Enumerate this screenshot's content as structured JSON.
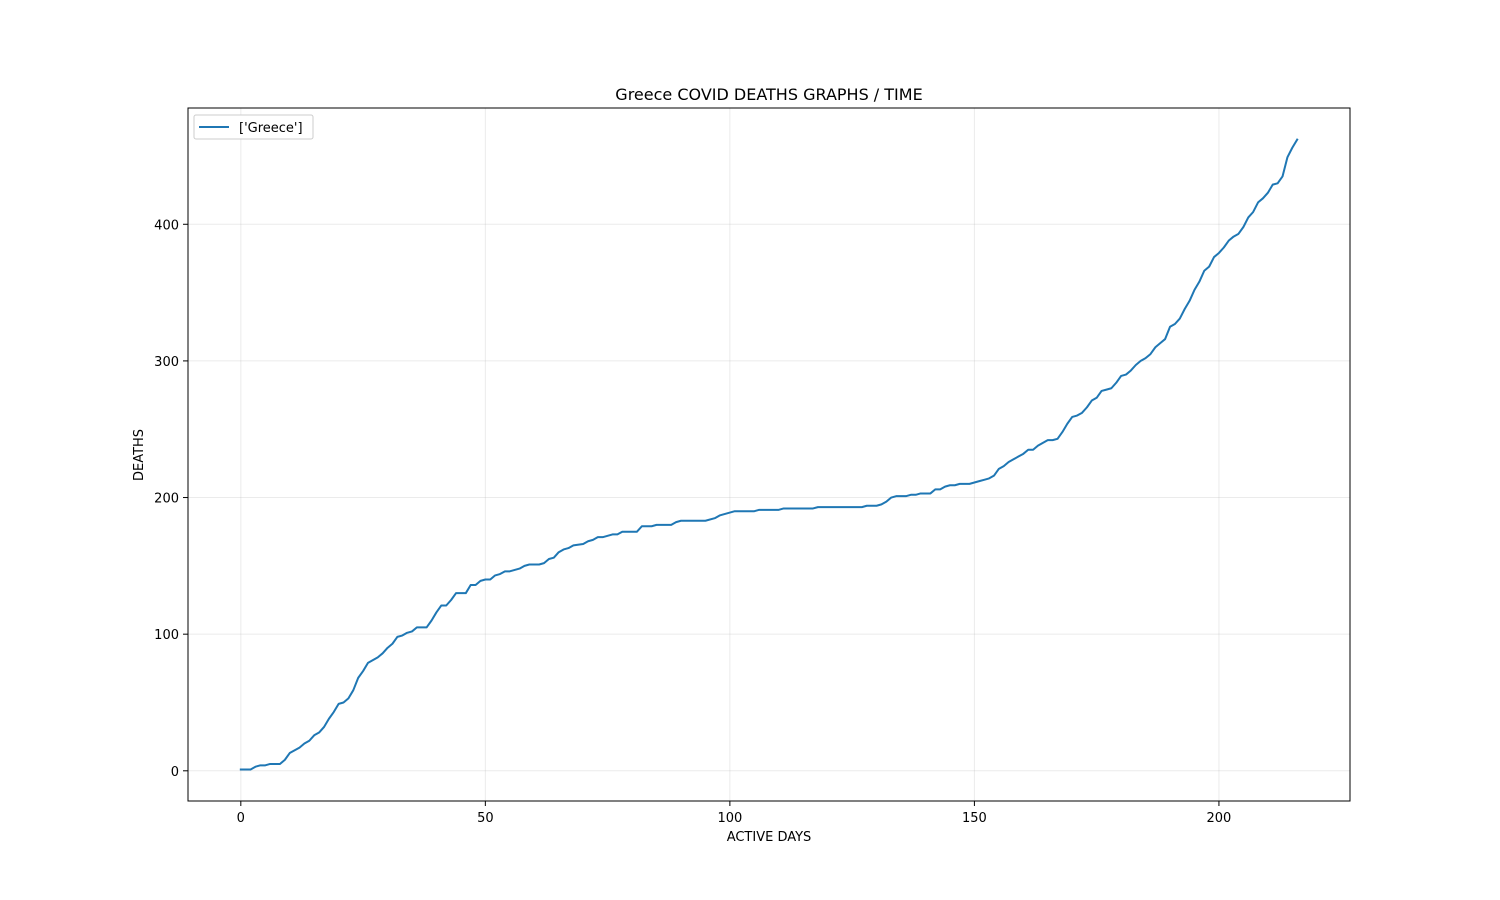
{
  "chart_data": {
    "type": "line",
    "title": "Greece COVID DEATHS GRAPHS / TIME",
    "xlabel": "ACTIVE DAYS",
    "ylabel": "DEATHS",
    "xlim": [
      -10.8,
      226.8
    ],
    "ylim": [
      -22.1,
      485.1
    ],
    "xticks": [
      0,
      50,
      100,
      150,
      200
    ],
    "yticks": [
      0,
      100,
      200,
      300,
      400
    ],
    "grid": true,
    "legend_position": "top-left",
    "line_color": "#1f77b4",
    "series": [
      {
        "name": "['Greece']",
        "points": [
          [
            0,
            1
          ],
          [
            2,
            1
          ],
          [
            3,
            3
          ],
          [
            4,
            4
          ],
          [
            5,
            4
          ],
          [
            6,
            5
          ],
          [
            8,
            5
          ],
          [
            9,
            8
          ],
          [
            10,
            13
          ],
          [
            12,
            17
          ],
          [
            13,
            20
          ],
          [
            14,
            22
          ],
          [
            15,
            26
          ],
          [
            16,
            28
          ],
          [
            17,
            32
          ],
          [
            18,
            38
          ],
          [
            19,
            43
          ],
          [
            20,
            49
          ],
          [
            21,
            50
          ],
          [
            22,
            53
          ],
          [
            23,
            59
          ],
          [
            24,
            68
          ],
          [
            25,
            73
          ],
          [
            26,
            79
          ],
          [
            27,
            81
          ],
          [
            28,
            83
          ],
          [
            29,
            86
          ],
          [
            30,
            90
          ],
          [
            31,
            93
          ],
          [
            32,
            98
          ],
          [
            33,
            99
          ],
          [
            34,
            101
          ],
          [
            35,
            102
          ],
          [
            36,
            105
          ],
          [
            38,
            105
          ],
          [
            39,
            110
          ],
          [
            40,
            116
          ],
          [
            41,
            121
          ],
          [
            42,
            121
          ],
          [
            43,
            125
          ],
          [
            44,
            130
          ],
          [
            46,
            130
          ],
          [
            47,
            136
          ],
          [
            48,
            136
          ],
          [
            49,
            139
          ],
          [
            50,
            140
          ],
          [
            51,
            140
          ],
          [
            52,
            143
          ],
          [
            53,
            144
          ],
          [
            54,
            146
          ],
          [
            55,
            146
          ],
          [
            56,
            147
          ],
          [
            57,
            148
          ],
          [
            58,
            150
          ],
          [
            59,
            151
          ],
          [
            61,
            151
          ],
          [
            62,
            152
          ],
          [
            63,
            155
          ],
          [
            64,
            156
          ],
          [
            65,
            160
          ],
          [
            66,
            162
          ],
          [
            67,
            163
          ],
          [
            68,
            165
          ],
          [
            70,
            166
          ],
          [
            71,
            168
          ],
          [
            72,
            169
          ],
          [
            73,
            171
          ],
          [
            74,
            171
          ],
          [
            75,
            172
          ],
          [
            76,
            173
          ],
          [
            77,
            173
          ],
          [
            78,
            175
          ],
          [
            81,
            175
          ],
          [
            82,
            179
          ],
          [
            84,
            179
          ],
          [
            85,
            180
          ],
          [
            88,
            180
          ],
          [
            89,
            182
          ],
          [
            90,
            183
          ],
          [
            95,
            183
          ],
          [
            97,
            185
          ],
          [
            98,
            187
          ],
          [
            100,
            189
          ],
          [
            101,
            190
          ],
          [
            105,
            190
          ],
          [
            106,
            191
          ],
          [
            110,
            191
          ],
          [
            111,
            192
          ],
          [
            117,
            192
          ],
          [
            118,
            193
          ],
          [
            127,
            193
          ],
          [
            128,
            194
          ],
          [
            130,
            194
          ],
          [
            131,
            195
          ],
          [
            132,
            197
          ],
          [
            133,
            200
          ],
          [
            134,
            201
          ],
          [
            136,
            201
          ],
          [
            137,
            202
          ],
          [
            138,
            202
          ],
          [
            139,
            203
          ],
          [
            141,
            203
          ],
          [
            142,
            206
          ],
          [
            143,
            206
          ],
          [
            144,
            208
          ],
          [
            145,
            209
          ],
          [
            146,
            209
          ],
          [
            147,
            210
          ],
          [
            149,
            210
          ],
          [
            150,
            211
          ],
          [
            151,
            212
          ],
          [
            152,
            213
          ],
          [
            153,
            214
          ],
          [
            154,
            216
          ],
          [
            155,
            221
          ],
          [
            156,
            223
          ],
          [
            157,
            226
          ],
          [
            158,
            228
          ],
          [
            159,
            230
          ],
          [
            160,
            232
          ],
          [
            161,
            235
          ],
          [
            162,
            235
          ],
          [
            163,
            238
          ],
          [
            164,
            240
          ],
          [
            165,
            242
          ],
          [
            166,
            242
          ],
          [
            167,
            243
          ],
          [
            168,
            248
          ],
          [
            169,
            254
          ],
          [
            170,
            259
          ],
          [
            171,
            260
          ],
          [
            172,
            262
          ],
          [
            173,
            266
          ],
          [
            174,
            271
          ],
          [
            175,
            273
          ],
          [
            176,
            278
          ],
          [
            177,
            279
          ],
          [
            178,
            280
          ],
          [
            179,
            284
          ],
          [
            180,
            289
          ],
          [
            181,
            290
          ],
          [
            182,
            293
          ],
          [
            183,
            297
          ],
          [
            184,
            300
          ],
          [
            185,
            302
          ],
          [
            186,
            305
          ],
          [
            187,
            310
          ],
          [
            188,
            313
          ],
          [
            189,
            316
          ],
          [
            190,
            325
          ],
          [
            191,
            327
          ],
          [
            192,
            331
          ],
          [
            193,
            338
          ],
          [
            194,
            344
          ],
          [
            195,
            352
          ],
          [
            196,
            358
          ],
          [
            197,
            366
          ],
          [
            198,
            369
          ],
          [
            199,
            376
          ],
          [
            200,
            379
          ],
          [
            201,
            383
          ],
          [
            202,
            388
          ],
          [
            203,
            391
          ],
          [
            204,
            393
          ],
          [
            205,
            398
          ],
          [
            206,
            405
          ],
          [
            207,
            409
          ],
          [
            208,
            416
          ],
          [
            209,
            419
          ],
          [
            210,
            423
          ],
          [
            211,
            429
          ],
          [
            212,
            430
          ],
          [
            213,
            435
          ],
          [
            214,
            449
          ],
          [
            215,
            456
          ],
          [
            216,
            462
          ]
        ]
      }
    ]
  }
}
